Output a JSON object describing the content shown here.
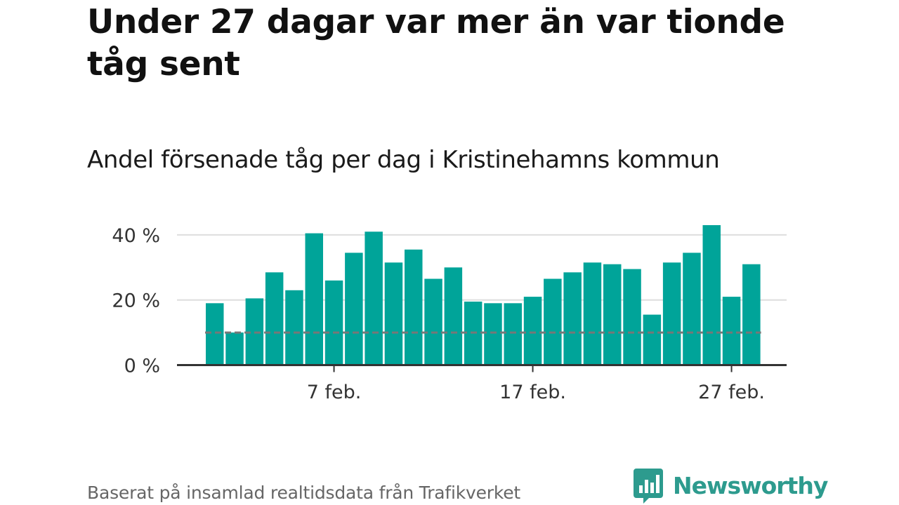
{
  "title": "Under 27 dagar var mer än var tionde tåg sent",
  "subtitle": "Andel försenade tåg per dag i Kristinehamns kommun",
  "footer": {
    "source": "Baserat på insamlad realtidsdata från Trafikverket",
    "brand": "Newsworthy"
  },
  "colors": {
    "bar": "#00a499",
    "reference_line": "#777777",
    "grid": "#dddddd",
    "axis": "#333333",
    "brand": "#2d9b8e"
  },
  "icons": {
    "brand_logo": "newsworthy-logo-icon"
  },
  "chart_data": {
    "type": "bar",
    "x": [
      "2025-02-01",
      "2025-02-02",
      "2025-02-03",
      "2025-02-04",
      "2025-02-05",
      "2025-02-06",
      "2025-02-07",
      "2025-02-08",
      "2025-02-09",
      "2025-02-10",
      "2025-02-11",
      "2025-02-12",
      "2025-02-13",
      "2025-02-14",
      "2025-02-15",
      "2025-02-16",
      "2025-02-17",
      "2025-02-18",
      "2025-02-19",
      "2025-02-20",
      "2025-02-21",
      "2025-02-22",
      "2025-02-23",
      "2025-02-24",
      "2025-02-25",
      "2025-02-26",
      "2025-02-27",
      "2025-02-28"
    ],
    "values": [
      19,
      10,
      20.5,
      28.5,
      23,
      40.5,
      26,
      34.5,
      41,
      31.5,
      35.5,
      26.5,
      30,
      19.5,
      19,
      19,
      21,
      26.5,
      28.5,
      31.5,
      31,
      29.5,
      15.5,
      31.5,
      34.5,
      43,
      21,
      31
    ],
    "reference_line": 10,
    "ylim": [
      0,
      45
    ],
    "yticks": [
      0,
      20,
      40
    ],
    "ytick_labels": [
      "0 %",
      "20 %",
      "40 %"
    ],
    "xticks": [
      {
        "x": "2025-02-07",
        "label": "7 feb."
      },
      {
        "x": "2025-02-17",
        "label": "17 feb."
      },
      {
        "x": "2025-02-27",
        "label": "27 feb."
      }
    ],
    "grid": true,
    "legend": "none",
    "xlabel": "",
    "ylabel": ""
  }
}
